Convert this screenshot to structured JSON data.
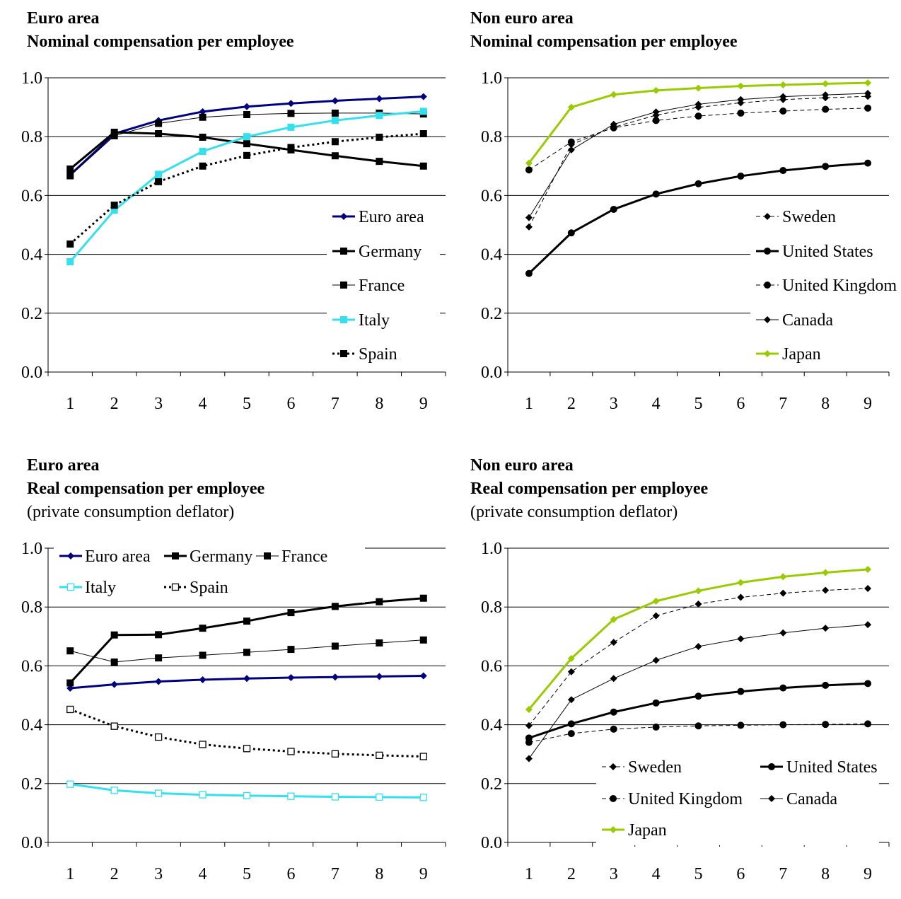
{
  "chart_data": [
    {
      "type": "line",
      "title_lines": [
        "Euro area",
        "Nominal compensation per employee"
      ],
      "subtitle": "",
      "x": [
        1,
        2,
        3,
        4,
        5,
        6,
        7,
        8,
        9
      ],
      "ylim": [
        0,
        1
      ],
      "yticks": [
        "0.0",
        "0.2",
        "0.4",
        "0.6",
        "0.8",
        "1.0"
      ],
      "grid": true,
      "legend_position": "right",
      "series": [
        {
          "name": "Euro area",
          "color": "#000080",
          "marker": "diamond",
          "dash": "solid",
          "width": 3,
          "values": [
            0.67,
            0.81,
            0.855,
            0.885,
            0.902,
            0.913,
            0.922,
            0.929,
            0.936
          ]
        },
        {
          "name": "Germany",
          "color": "#000000",
          "marker": "square",
          "dash": "solid",
          "width": 3,
          "values": [
            0.69,
            0.815,
            0.81,
            0.798,
            0.776,
            0.755,
            0.735,
            0.716,
            0.7
          ]
        },
        {
          "name": "France",
          "color": "#000000",
          "marker": "square",
          "dash": "solid",
          "width": 1,
          "values": [
            0.667,
            0.803,
            0.845,
            0.866,
            0.875,
            0.879,
            0.88,
            0.88,
            0.877
          ]
        },
        {
          "name": "Italy",
          "color": "#33e0ee",
          "marker": "square",
          "dash": "solid",
          "width": 3,
          "values": [
            0.375,
            0.55,
            0.672,
            0.75,
            0.8,
            0.832,
            0.855,
            0.872,
            0.886
          ]
        },
        {
          "name": "Spain",
          "color": "#000000",
          "marker": "square",
          "dash": "dotted",
          "width": 3,
          "values": [
            0.435,
            0.567,
            0.647,
            0.7,
            0.736,
            0.763,
            0.783,
            0.798,
            0.81
          ]
        }
      ]
    },
    {
      "type": "line",
      "title_lines": [
        "Non euro area",
        "Nominal compensation per employee"
      ],
      "subtitle": "",
      "x": [
        1,
        2,
        3,
        4,
        5,
        6,
        7,
        8,
        9
      ],
      "ylim": [
        0,
        1
      ],
      "yticks": [
        "0.0",
        "0.2",
        "0.4",
        "0.6",
        "0.8",
        "1.0"
      ],
      "grid": true,
      "legend_position": "right",
      "series": [
        {
          "name": "Sweden",
          "color": "#000000",
          "marker": "diamond",
          "dash": "dashed",
          "width": 1,
          "values": [
            0.493,
            0.773,
            0.832,
            0.873,
            0.9,
            0.915,
            0.926,
            0.932,
            0.937
          ]
        },
        {
          "name": "United States",
          "color": "#000000",
          "marker": "circle",
          "dash": "solid",
          "width": 3,
          "values": [
            0.335,
            0.473,
            0.553,
            0.605,
            0.64,
            0.666,
            0.685,
            0.699,
            0.71
          ]
        },
        {
          "name": "United Kingdom",
          "color": "#000000",
          "marker": "circle",
          "dash": "dashed",
          "width": 1,
          "values": [
            0.687,
            0.782,
            0.83,
            0.855,
            0.87,
            0.88,
            0.887,
            0.893,
            0.897
          ]
        },
        {
          "name": "Canada",
          "color": "#000000",
          "marker": "diamond",
          "dash": "solid",
          "width": 1,
          "values": [
            0.525,
            0.755,
            0.842,
            0.884,
            0.91,
            0.926,
            0.936,
            0.942,
            0.947
          ]
        },
        {
          "name": "Japan",
          "color": "#99cc00",
          "marker": "diamond",
          "dash": "solid",
          "width": 3,
          "values": [
            0.71,
            0.9,
            0.943,
            0.957,
            0.965,
            0.972,
            0.976,
            0.98,
            0.983
          ]
        }
      ]
    },
    {
      "type": "line",
      "title_lines": [
        "Euro area",
        "Real compensation per employee"
      ],
      "subtitle": "(private consumption deflator)",
      "x": [
        1,
        2,
        3,
        4,
        5,
        6,
        7,
        8,
        9
      ],
      "ylim": [
        0,
        1
      ],
      "yticks": [
        "0.0",
        "0.2",
        "0.4",
        "0.6",
        "0.8",
        "1.0"
      ],
      "grid": true,
      "legend_position": "top",
      "series": [
        {
          "name": "Euro area",
          "color": "#000080",
          "marker": "diamond",
          "dash": "solid",
          "width": 3,
          "values": [
            0.524,
            0.537,
            0.547,
            0.553,
            0.557,
            0.56,
            0.562,
            0.564,
            0.566
          ]
        },
        {
          "name": "Germany",
          "color": "#000000",
          "marker": "square",
          "dash": "solid",
          "width": 3,
          "values": [
            0.542,
            0.705,
            0.706,
            0.728,
            0.752,
            0.781,
            0.802,
            0.818,
            0.83
          ]
        },
        {
          "name": "France",
          "color": "#000000",
          "marker": "square",
          "dash": "solid",
          "width": 1,
          "values": [
            0.651,
            0.613,
            0.627,
            0.636,
            0.646,
            0.656,
            0.667,
            0.678,
            0.688
          ]
        },
        {
          "name": "Italy",
          "color": "#33e0ee",
          "marker": "hollow-square",
          "dash": "solid",
          "width": 3,
          "values": [
            0.198,
            0.177,
            0.167,
            0.162,
            0.159,
            0.157,
            0.155,
            0.154,
            0.153
          ]
        },
        {
          "name": "Spain",
          "color": "#000000",
          "marker": "hollow-square",
          "dash": "dotted",
          "width": 3,
          "values": [
            0.452,
            0.395,
            0.358,
            0.333,
            0.319,
            0.309,
            0.301,
            0.296,
            0.292
          ]
        }
      ]
    },
    {
      "type": "line",
      "title_lines": [
        "Non euro area",
        "Real compensation per employee"
      ],
      "subtitle": "(private consumption deflator)",
      "x": [
        1,
        2,
        3,
        4,
        5,
        6,
        7,
        8,
        9
      ],
      "ylim": [
        0,
        1
      ],
      "yticks": [
        "0.0",
        "0.2",
        "0.4",
        "0.6",
        "0.8",
        "1.0"
      ],
      "grid": true,
      "legend_position": "bottom",
      "series": [
        {
          "name": "Sweden",
          "color": "#000000",
          "marker": "diamond",
          "dash": "dashed",
          "width": 1,
          "values": [
            0.397,
            0.58,
            0.68,
            0.77,
            0.81,
            0.833,
            0.847,
            0.857,
            0.863
          ]
        },
        {
          "name": "United States",
          "color": "#000000",
          "marker": "circle",
          "dash": "solid",
          "width": 3,
          "values": [
            0.355,
            0.403,
            0.443,
            0.474,
            0.497,
            0.513,
            0.525,
            0.534,
            0.54
          ]
        },
        {
          "name": "United Kingdom",
          "color": "#000000",
          "marker": "circle",
          "dash": "dashed",
          "width": 1,
          "values": [
            0.34,
            0.37,
            0.385,
            0.392,
            0.396,
            0.398,
            0.4,
            0.401,
            0.403
          ]
        },
        {
          "name": "Canada",
          "color": "#000000",
          "marker": "diamond",
          "dash": "solid",
          "width": 1,
          "values": [
            0.285,
            0.485,
            0.557,
            0.619,
            0.666,
            0.692,
            0.712,
            0.728,
            0.74
          ]
        },
        {
          "name": "Japan",
          "color": "#99cc00",
          "marker": "diamond",
          "dash": "solid",
          "width": 3,
          "values": [
            0.452,
            0.625,
            0.758,
            0.82,
            0.855,
            0.883,
            0.903,
            0.917,
            0.928
          ]
        }
      ]
    }
  ]
}
